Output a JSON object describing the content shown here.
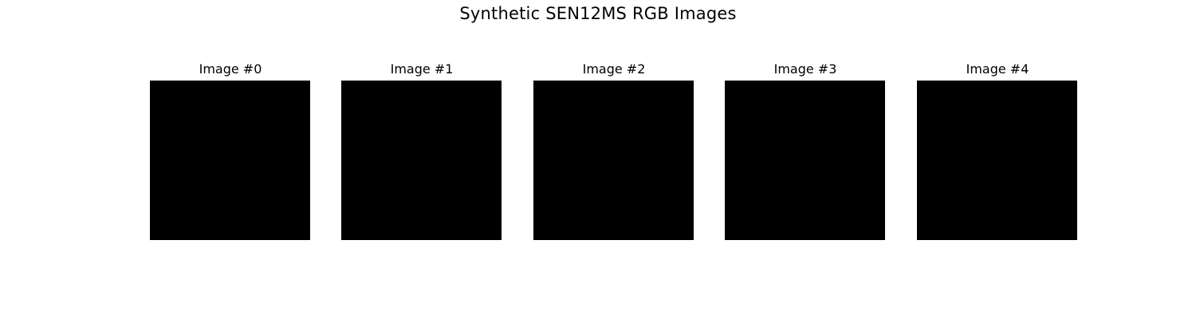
{
  "figure": {
    "title": "Synthetic SEN12MS RGB Images",
    "images": [
      {
        "label": "Image #0",
        "color": "#000000"
      },
      {
        "label": "Image #1",
        "color": "#000000"
      },
      {
        "label": "Image #2",
        "color": "#000000"
      },
      {
        "label": "Image #3",
        "color": "#000000"
      },
      {
        "label": "Image #4",
        "color": "#000000"
      }
    ]
  }
}
